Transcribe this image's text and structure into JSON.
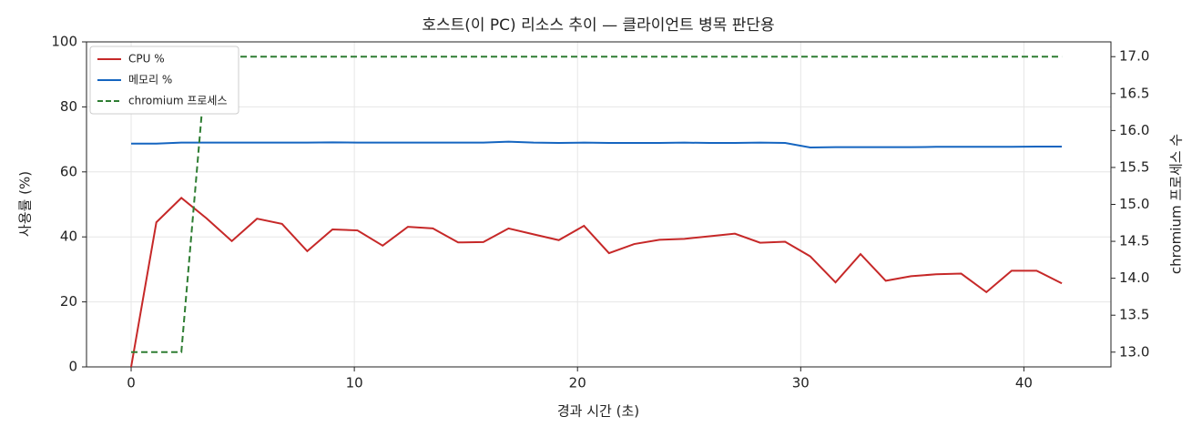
{
  "chart_data": {
    "type": "line",
    "title": "호스트(이 PC) 리소스 추이 — 클라이언트 병목 판단용",
    "x_label": "경과 시간 (초)",
    "y_label": "사용률 (%)",
    "y2_label": "chromium 프로세스 수",
    "x": [
      0,
      1.13,
      2.25,
      3.38,
      4.51,
      5.64,
      6.76,
      7.89,
      9.02,
      10.14,
      11.27,
      12.4,
      13.52,
      14.65,
      15.78,
      16.91,
      18.03,
      19.16,
      20.29,
      21.41,
      22.54,
      23.67,
      24.79,
      25.92,
      27.05,
      28.18,
      29.3,
      30.43,
      31.56,
      32.68,
      33.81,
      34.94,
      36.07,
      37.19,
      38.32,
      39.45,
      40.57,
      41.7
    ],
    "series": [
      {
        "name": "CPU %",
        "color": "#c62828",
        "linestyle": "solid",
        "values": [
          0,
          44.5,
          52,
          45.7,
          38.7,
          45.6,
          44,
          35.6,
          42.3,
          42,
          37.3,
          43.1,
          42.6,
          38.3,
          38.4,
          42.6,
          40.8,
          39,
          43.4,
          35,
          37.8,
          39.1,
          39.4,
          40.2,
          41,
          38.2,
          38.5,
          34,
          26,
          34.7,
          26.5,
          27.9,
          28.5,
          28.7,
          23,
          29.6,
          29.6,
          25.7
        ]
      },
      {
        "name": "메모리 %",
        "color": "#1565c0",
        "linestyle": "solid",
        "values": [
          68.7,
          68.7,
          69,
          69,
          69,
          69,
          69,
          69,
          69.1,
          69,
          69,
          69,
          69,
          69,
          69,
          69.3,
          69,
          68.9,
          69,
          68.9,
          68.9,
          68.9,
          69,
          68.9,
          68.9,
          69,
          68.9,
          67.5,
          67.6,
          67.6,
          67.6,
          67.6,
          67.7,
          67.7,
          67.7,
          67.7,
          67.8,
          67.8
        ]
      },
      {
        "name": "chromium 프로세스",
        "color": "#2e7d32",
        "linestyle": "dashed",
        "axis": "y2",
        "values": [
          13,
          13,
          13,
          17,
          17,
          17,
          17,
          17,
          17,
          17,
          17,
          17,
          17,
          17,
          17,
          17,
          17,
          17,
          17,
          17,
          17,
          17,
          17,
          17,
          17,
          17,
          17,
          17,
          17,
          17,
          17,
          17,
          17,
          17,
          17,
          17,
          17,
          17
        ]
      }
    ],
    "xlim": [
      -2,
      43.9
    ],
    "xticks": [
      0,
      10,
      20,
      30,
      40
    ],
    "ylim": [
      0,
      100
    ],
    "yticks": [
      0,
      20,
      40,
      60,
      80,
      100
    ],
    "y2lim": [
      12.8,
      17.2
    ],
    "y2ticks": [
      {
        "value": 13,
        "label": "13.0"
      },
      {
        "value": 13.5,
        "label": "13.5"
      },
      {
        "value": 14,
        "label": "14.0"
      },
      {
        "value": 14.5,
        "label": "14.5"
      },
      {
        "value": 15,
        "label": "15.0"
      },
      {
        "value": 15.5,
        "label": "15.5"
      },
      {
        "value": 16,
        "label": "16.0"
      },
      {
        "value": 16.5,
        "label": "16.5"
      },
      {
        "value": 17,
        "label": "17.0"
      }
    ],
    "grid": true,
    "legend": "upper-left"
  }
}
